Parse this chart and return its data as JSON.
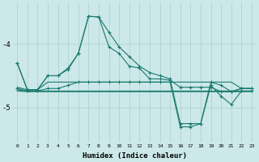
{
  "xlabel": "Humidex (Indice chaleur)",
  "x": [
    0,
    1,
    2,
    3,
    4,
    5,
    6,
    7,
    8,
    9,
    10,
    11,
    12,
    13,
    14,
    15,
    16,
    17,
    18,
    19,
    20,
    21,
    22,
    23
  ],
  "line1": [
    -4.3,
    -4.72,
    -4.72,
    -4.5,
    -4.5,
    -4.4,
    -4.15,
    -3.57,
    -3.58,
    -3.82,
    -4.05,
    -4.2,
    -4.35,
    -4.45,
    -4.5,
    -4.55,
    -5.25,
    -5.25,
    -5.25,
    -4.6,
    -4.65,
    -4.75,
    -4.7,
    -4.7
  ],
  "line2": [
    -4.3,
    -4.72,
    -4.72,
    -4.5,
    -4.5,
    -4.38,
    -4.15,
    -3.57,
    -3.58,
    -4.05,
    -4.15,
    -4.35,
    -4.38,
    -4.55,
    -4.55,
    -4.57,
    -4.68,
    -4.68,
    -4.68,
    -4.68,
    -4.75,
    -4.75,
    -4.7,
    -4.7
  ],
  "line3": [
    -4.68,
    -4.72,
    -4.72,
    -4.6,
    -4.6,
    -4.6,
    -4.6,
    -4.6,
    -4.6,
    -4.6,
    -4.6,
    -4.6,
    -4.6,
    -4.6,
    -4.6,
    -4.6,
    -4.6,
    -4.6,
    -4.6,
    -4.6,
    -4.6,
    -4.6,
    -4.7,
    -4.7
  ],
  "line4": [
    -4.72,
    -4.74,
    -4.74,
    -4.74,
    -4.74,
    -4.74,
    -4.74,
    -4.74,
    -4.74,
    -4.74,
    -4.74,
    -4.74,
    -4.74,
    -4.74,
    -4.74,
    -4.74,
    -4.74,
    -4.74,
    -4.74,
    -4.74,
    -4.74,
    -4.74,
    -4.74,
    -4.74
  ],
  "line5": [
    -4.74,
    -4.75,
    -4.75,
    -4.75,
    -4.75,
    -4.75,
    -4.75,
    -4.75,
    -4.75,
    -4.75,
    -4.75,
    -4.75,
    -4.75,
    -4.75,
    -4.75,
    -4.75,
    -4.75,
    -4.75,
    -4.75,
    -4.75,
    -4.75,
    -4.75,
    -4.75,
    -4.75
  ],
  "line6": [
    -4.7,
    -4.74,
    -4.74,
    -4.7,
    -4.7,
    -4.65,
    -4.6,
    -4.6,
    -4.6,
    -4.6,
    -4.6,
    -4.6,
    -4.6,
    -4.6,
    -4.6,
    -4.6,
    -5.3,
    -5.3,
    -5.25,
    -4.65,
    -4.82,
    -4.95,
    -4.74,
    -4.74
  ],
  "line_color": "#1a7a6e",
  "marker": "+",
  "bg_color": "#cce8e8",
  "grid_color": "#aacfcf",
  "yticks": [
    -5,
    -4
  ],
  "ylim": [
    -5.55,
    -3.35
  ],
  "xlim": [
    -0.5,
    23.5
  ]
}
